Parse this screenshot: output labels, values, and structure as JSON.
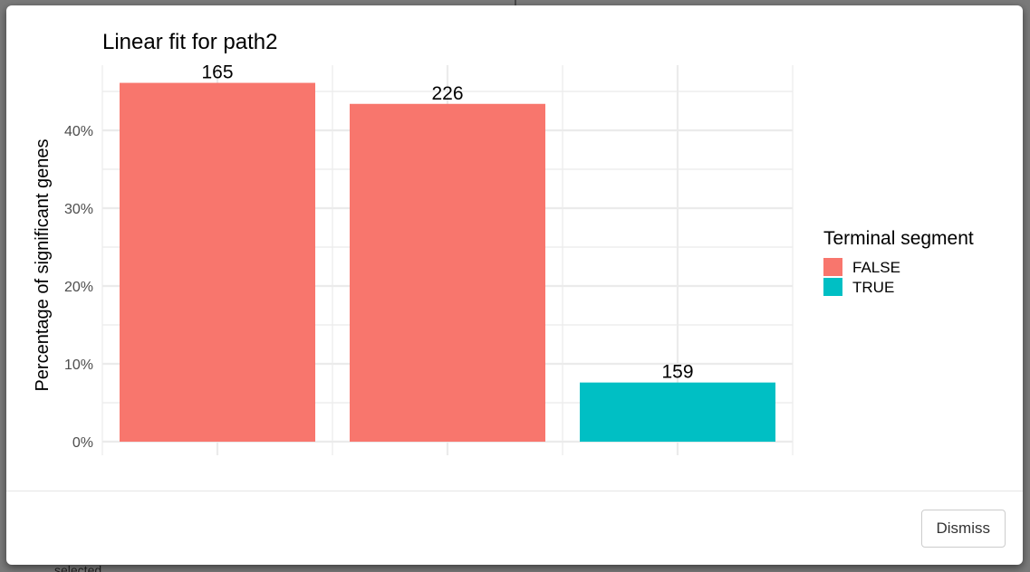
{
  "dialog": {
    "dismiss_label": "Dismiss"
  },
  "background": {
    "partial_text": "selected"
  },
  "chart_data": {
    "type": "bar",
    "title": "Linear fit for path2",
    "xlabel": "",
    "ylabel": "Percentage of significant genes",
    "y_ticks": [
      "0%",
      "10%",
      "20%",
      "30%",
      "40%"
    ],
    "ylim": [
      0,
      0.48
    ],
    "grid": true,
    "legend": {
      "title": "Terminal segment",
      "position": "right",
      "entries": [
        {
          "label": "FALSE",
          "color": "#F8766D"
        },
        {
          "label": "TRUE",
          "color": "#00BFC4"
        }
      ]
    },
    "bars": [
      {
        "value": 0.461,
        "label": "165",
        "group": "FALSE",
        "color": "#F8766D"
      },
      {
        "value": 0.434,
        "label": "226",
        "group": "FALSE",
        "color": "#F8766D"
      },
      {
        "value": 0.076,
        "label": "159",
        "group": "TRUE",
        "color": "#00BFC4"
      }
    ]
  }
}
